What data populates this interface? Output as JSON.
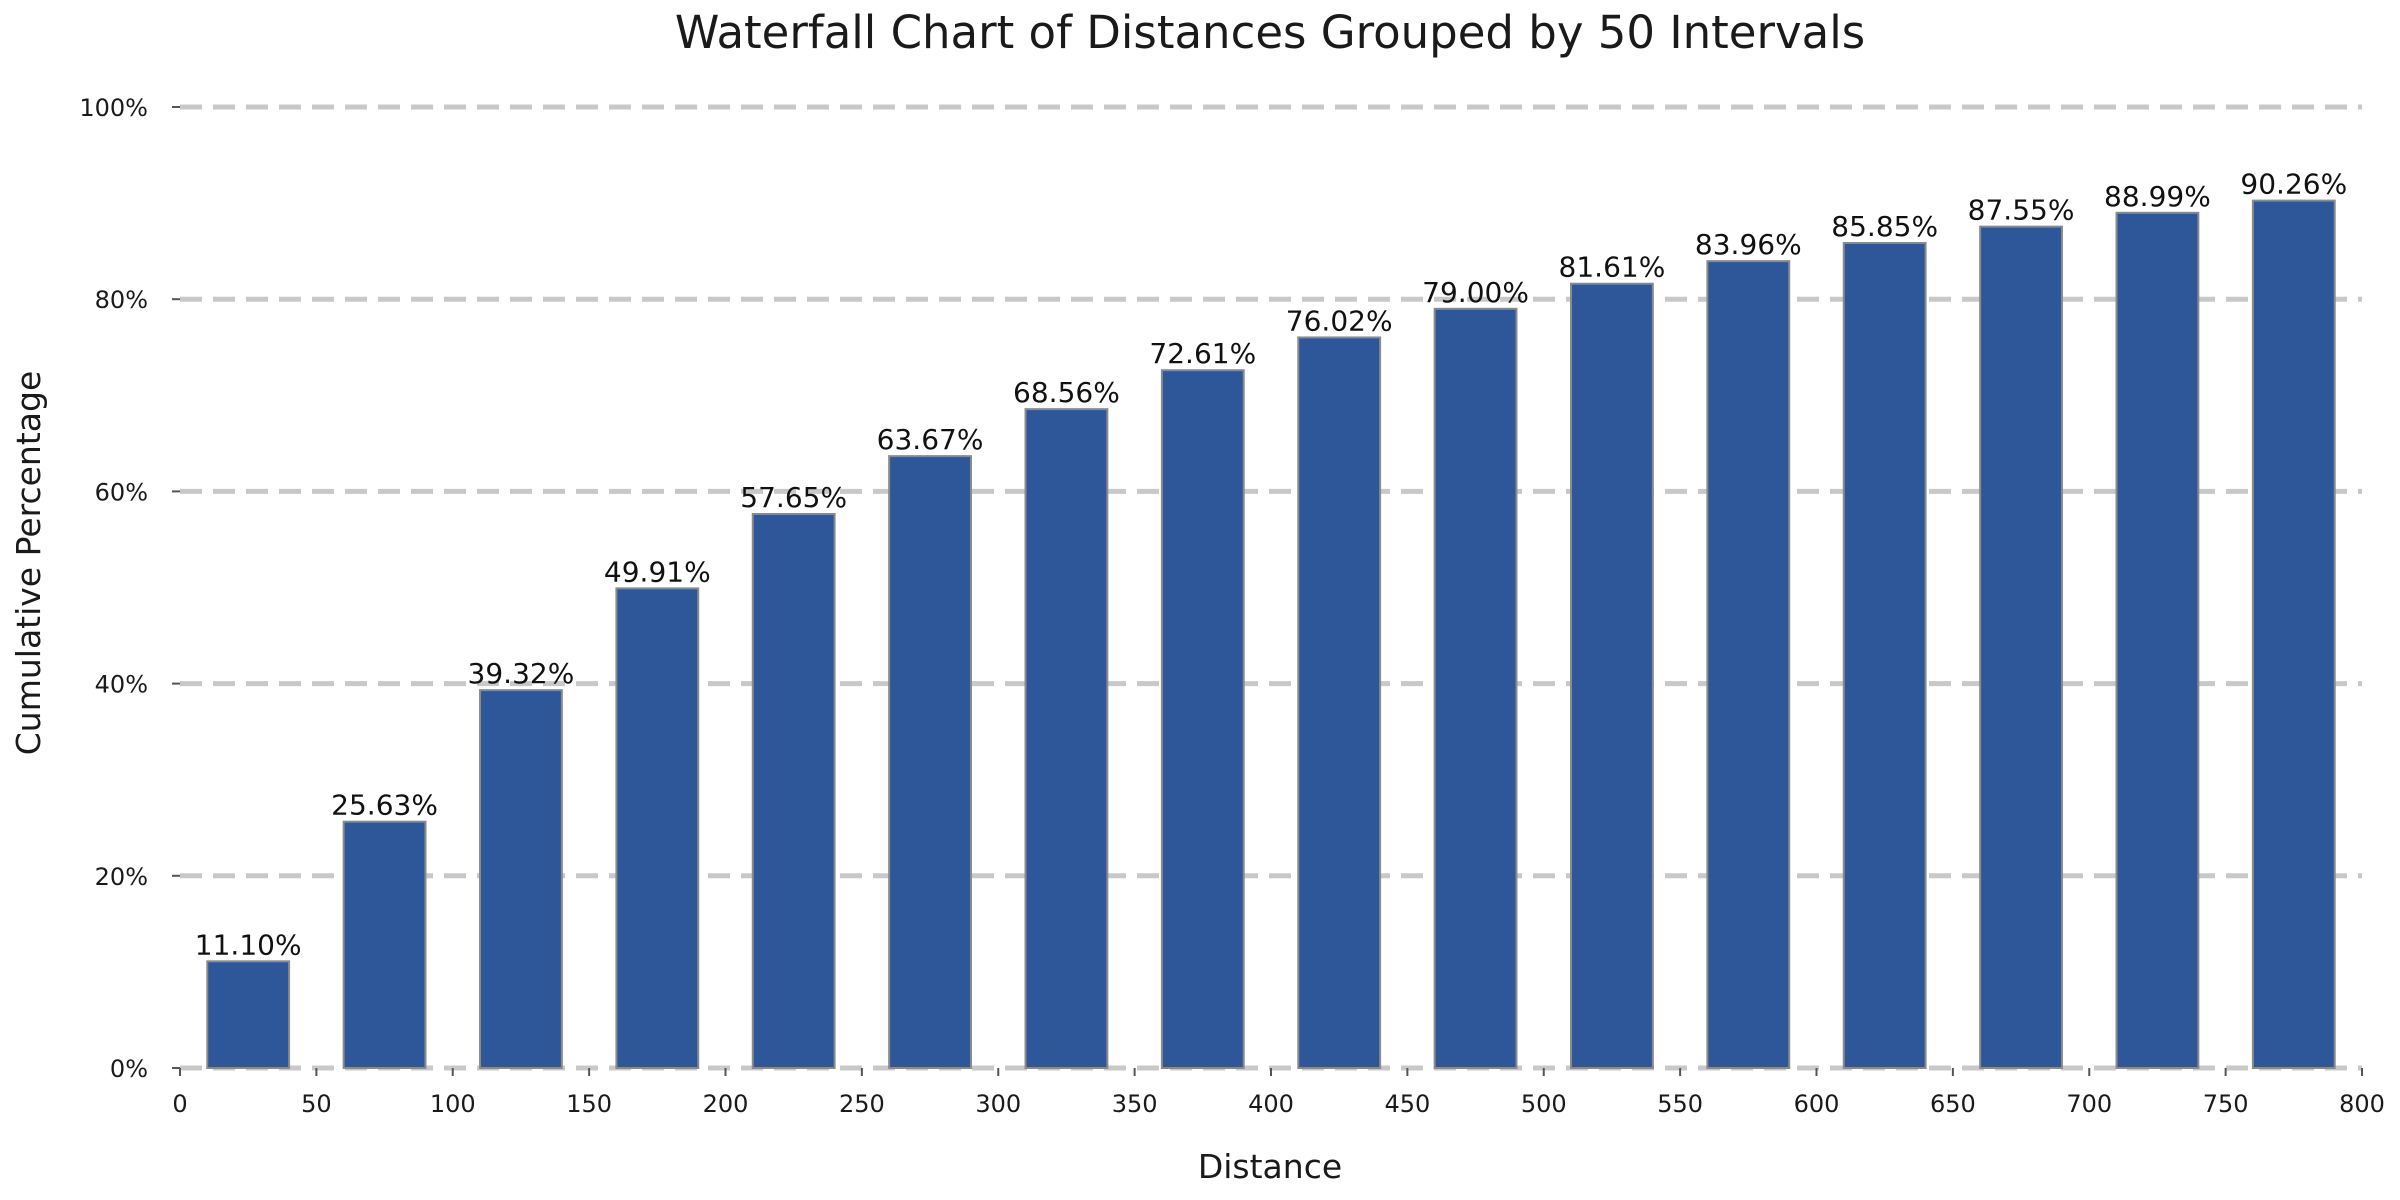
{
  "chart_data": {
    "type": "bar",
    "title": "Waterfall Chart of Distances Grouped by 50 Intervals",
    "xlabel": "Distance",
    "ylabel": "Cumulative Percentage",
    "xlim": [
      0,
      800
    ],
    "ylim": [
      0,
      100
    ],
    "x_ticks": [
      0,
      50,
      100,
      150,
      200,
      250,
      300,
      350,
      400,
      450,
      500,
      550,
      600,
      650,
      700,
      750,
      800
    ],
    "y_ticks": [
      0,
      20,
      40,
      60,
      80,
      100
    ],
    "y_tick_labels": [
      "0%",
      "20%",
      "40%",
      "60%",
      "80%",
      "100%"
    ],
    "grid": true,
    "bar_color": "#2d5799",
    "categories": [
      25,
      75,
      125,
      175,
      225,
      275,
      325,
      375,
      425,
      475,
      525,
      575,
      625,
      675,
      725,
      775
    ],
    "bar_width": 30,
    "values": [
      11.1,
      25.63,
      39.32,
      49.91,
      57.65,
      63.67,
      68.56,
      72.61,
      76.02,
      79.0,
      81.61,
      83.96,
      85.85,
      87.55,
      88.99,
      90.26
    ],
    "value_labels": [
      "11.10%",
      "25.63%",
      "39.32%",
      "49.91%",
      "57.65%",
      "63.67%",
      "68.56%",
      "72.61%",
      "76.02%",
      "79.00%",
      "81.61%",
      "83.96%",
      "85.85%",
      "87.55%",
      "88.99%",
      "90.26%"
    ]
  }
}
